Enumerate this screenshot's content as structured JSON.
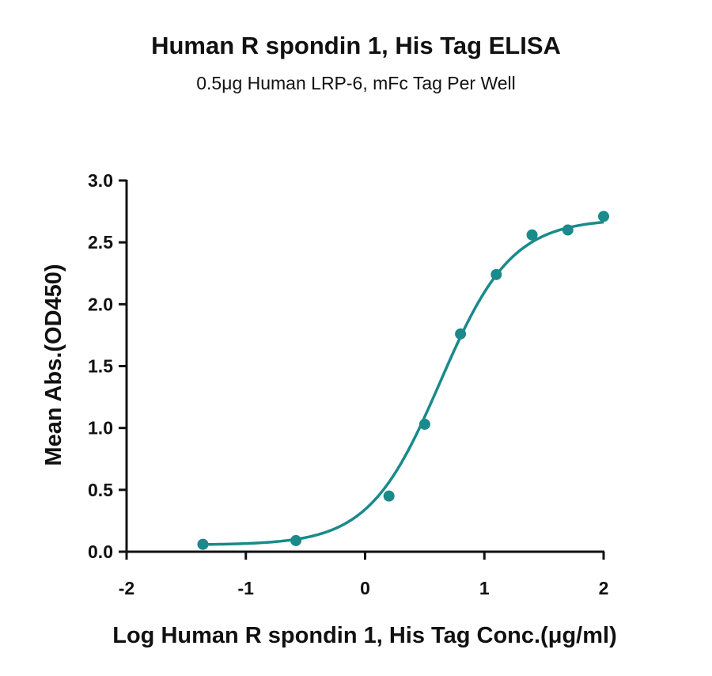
{
  "chart_data": {
    "type": "scatter",
    "title": "Human R spondin 1, His Tag ELISA",
    "subtitle": "0.5μg Human LRP-6, mFc Tag Per Well",
    "xlabel": "Log Human R spondin 1, His Tag Conc.(μg/ml)",
    "ylabel": "Mean Abs.(OD450)",
    "xlim": [
      -2,
      2
    ],
    "ylim": [
      0,
      3
    ],
    "xticks": [
      -2,
      -1,
      0,
      1,
      2
    ],
    "xtick_labels": [
      "-2",
      "-1",
      "0",
      "1",
      "2"
    ],
    "yticks": [
      0,
      0.5,
      1,
      1.5,
      2,
      2.5,
      3
    ],
    "ytick_labels": [
      "0.0",
      "0.5",
      "1.0",
      "1.5",
      "2.0",
      "2.5",
      "3.0"
    ],
    "grid": false,
    "color": "#1a8a8a",
    "series": [
      {
        "x": [
          -1.36,
          -0.58,
          0.2,
          0.5,
          0.8,
          1.1,
          1.4,
          1.7,
          2.0
        ],
        "y": [
          0.06,
          0.09,
          0.45,
          1.03,
          1.76,
          2.24,
          2.56,
          2.6,
          2.71
        ],
        "fit": "sigmoidal"
      }
    ],
    "fit_params": {
      "bottom": 0.055,
      "top": 2.69,
      "logEC50": 0.63,
      "hill": 1.45
    }
  }
}
